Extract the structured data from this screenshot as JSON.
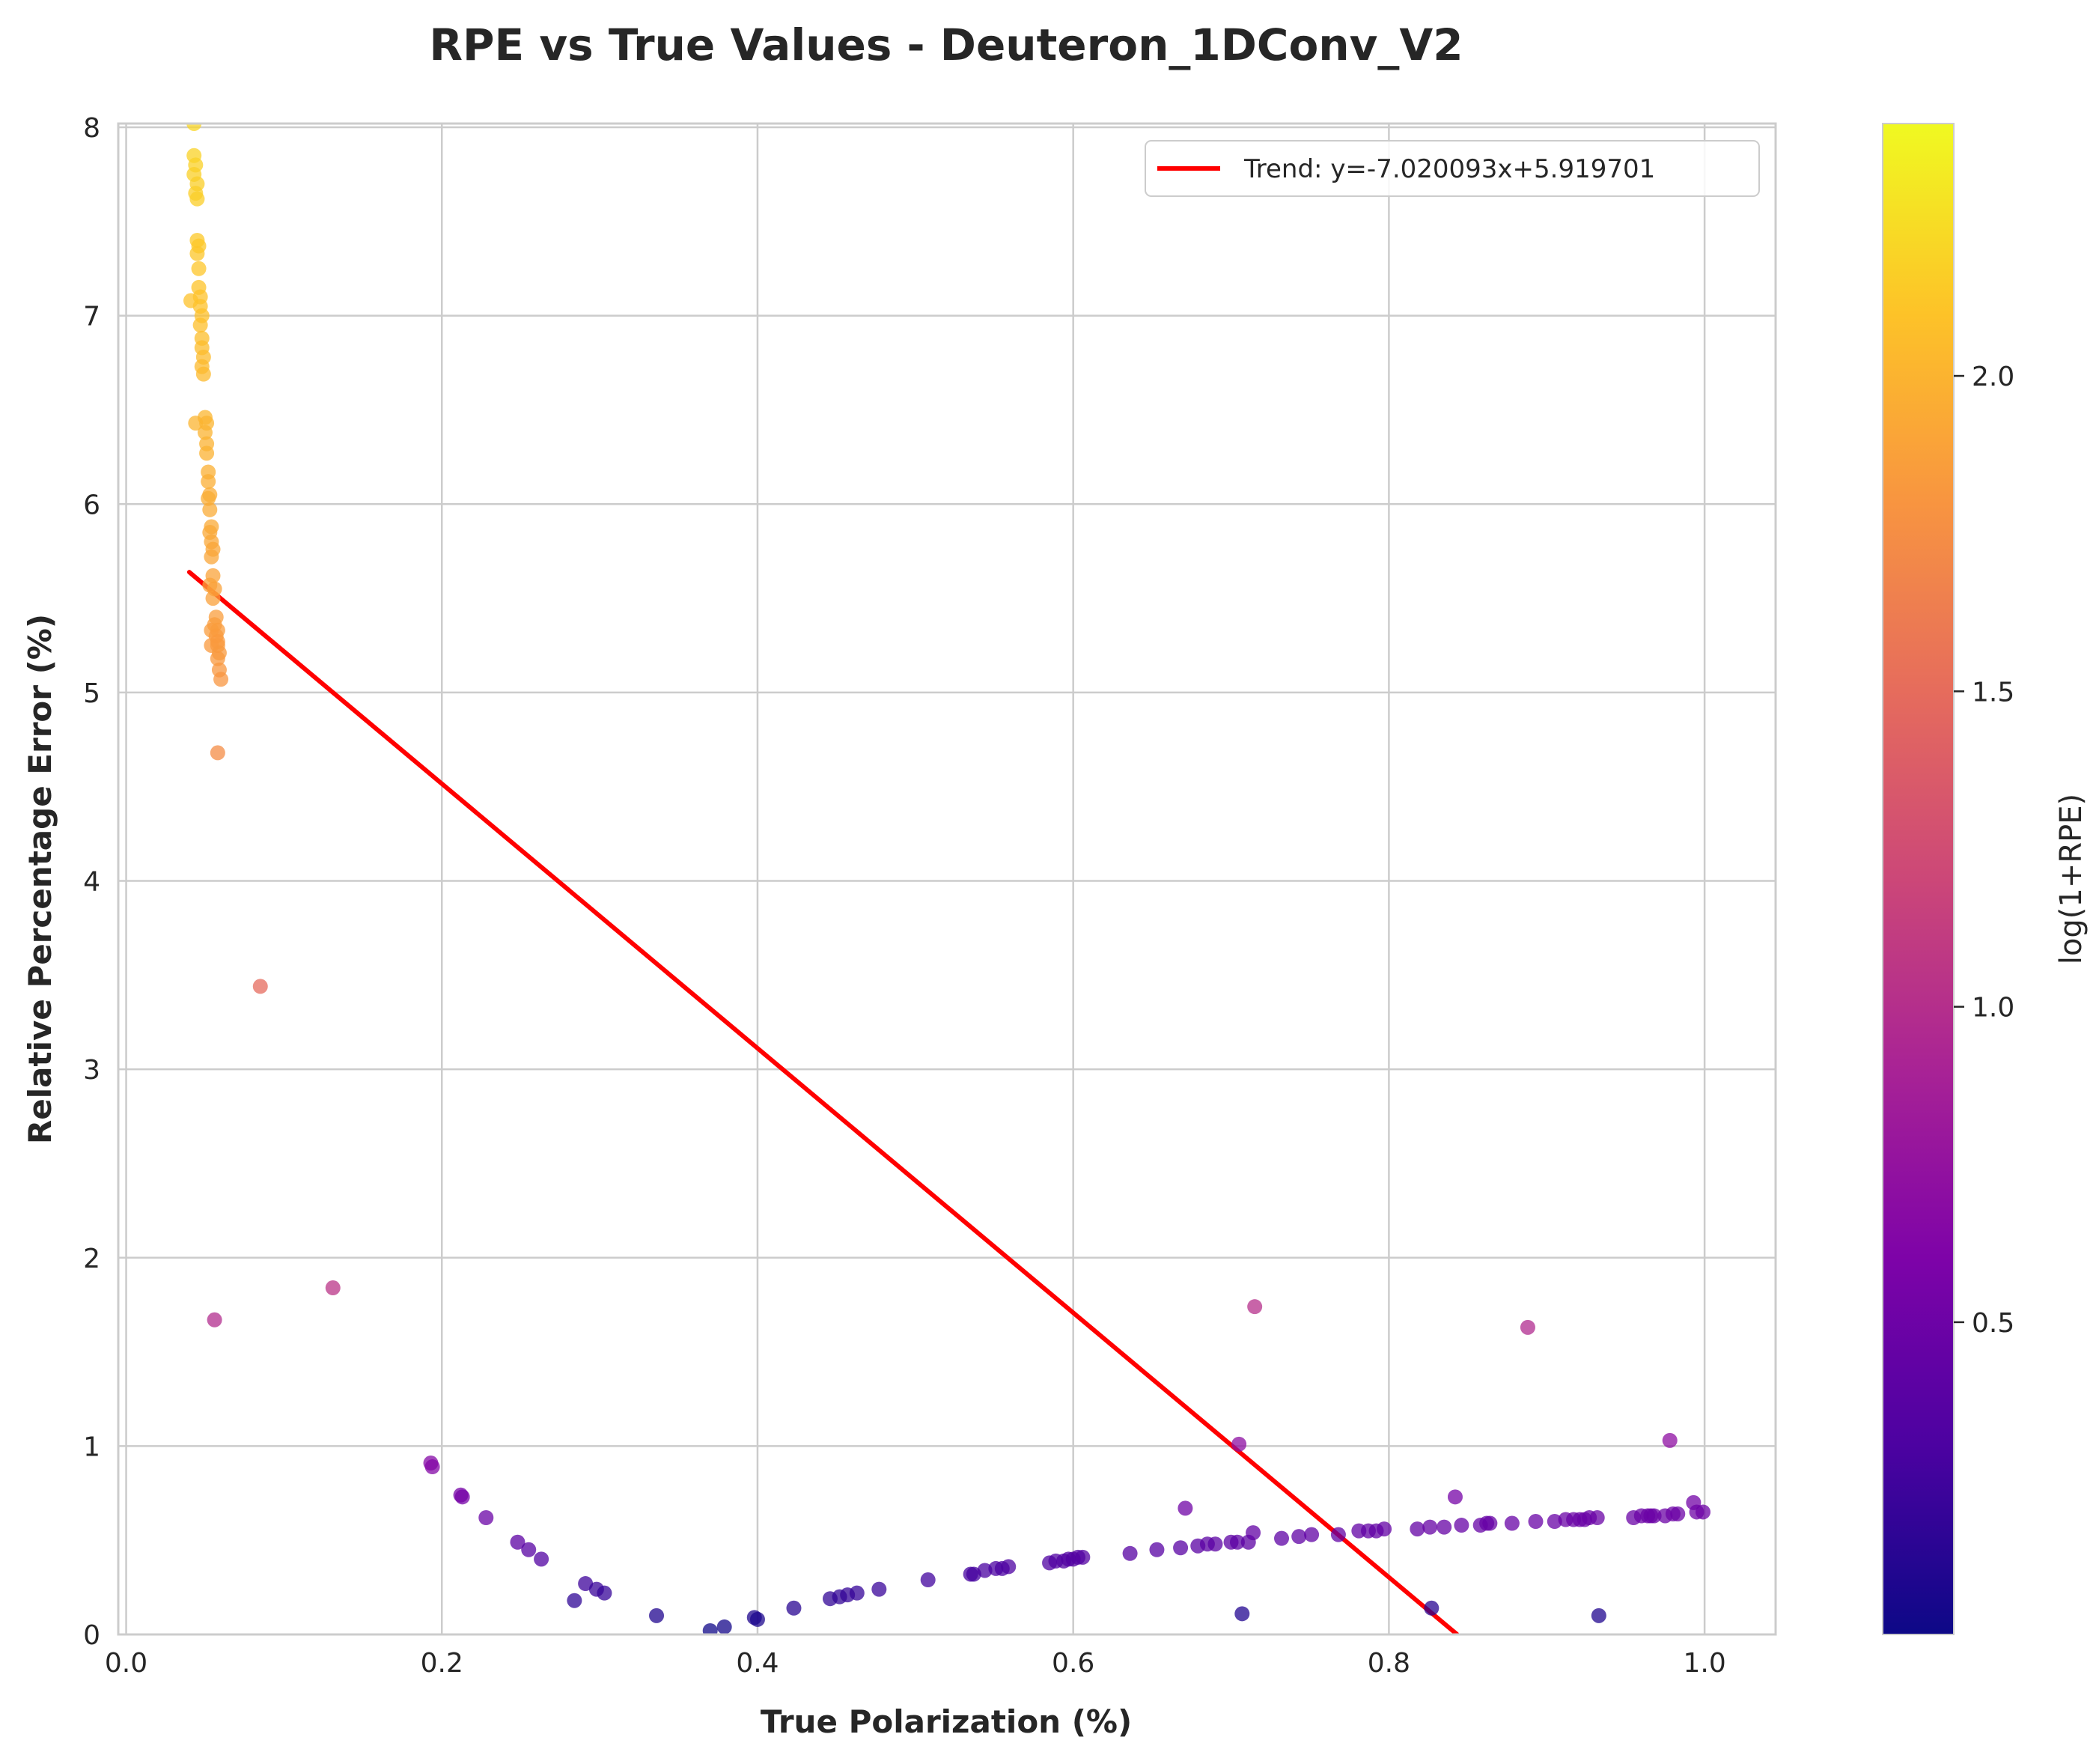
{
  "chart_data": {
    "type": "scatter",
    "title": "RPE vs True Values - Deuteron_1DConv_V2",
    "xlabel": "True Polarization (%)",
    "ylabel": "Relative Percentage Error (%)",
    "xlim": [
      -0.005,
      1.045
    ],
    "ylim": [
      0,
      8.02
    ],
    "xticks": [
      0.0,
      0.2,
      0.4,
      0.6,
      0.8,
      1.0
    ],
    "xtick_labels": [
      "0.0",
      "0.2",
      "0.4",
      "0.6",
      "0.8",
      "1.0"
    ],
    "yticks": [
      0,
      1,
      2,
      3,
      4,
      5,
      6,
      7,
      8
    ],
    "ytick_labels": [
      "0",
      "1",
      "2",
      "3",
      "4",
      "5",
      "6",
      "7",
      "8"
    ],
    "grid": true,
    "legend": {
      "position": "top-right",
      "entries": [
        "Trend: y=-7.020093x+5.919701"
      ]
    },
    "trend": {
      "label": "Trend: y=-7.020093x+5.919701",
      "slope": -7.020093,
      "intercept": 5.919701,
      "x_range": [
        0.04,
        0.843
      ],
      "color": "#ff0000"
    },
    "colorbar": {
      "label": "log(1+RPE)",
      "colormap": "plasma",
      "range": [
        0.005,
        2.4
      ],
      "ticks": [
        0.5,
        1.0,
        1.5,
        2.0
      ],
      "tick_labels": [
        "0.5",
        "1.0",
        "1.5",
        "2.0"
      ]
    },
    "points": [
      [
        0.043,
        8.02
      ],
      [
        0.043,
        7.85
      ],
      [
        0.044,
        7.8
      ],
      [
        0.043,
        7.75
      ],
      [
        0.045,
        7.7
      ],
      [
        0.044,
        7.65
      ],
      [
        0.045,
        7.62
      ],
      [
        0.045,
        7.4
      ],
      [
        0.046,
        7.37
      ],
      [
        0.045,
        7.33
      ],
      [
        0.046,
        7.25
      ],
      [
        0.046,
        7.15
      ],
      [
        0.047,
        7.1
      ],
      [
        0.041,
        7.08
      ],
      [
        0.047,
        7.05
      ],
      [
        0.048,
        7.0
      ],
      [
        0.047,
        6.95
      ],
      [
        0.048,
        6.88
      ],
      [
        0.048,
        6.83
      ],
      [
        0.049,
        6.78
      ],
      [
        0.048,
        6.73
      ],
      [
        0.049,
        6.69
      ],
      [
        0.05,
        6.46
      ],
      [
        0.051,
        6.43
      ],
      [
        0.044,
        6.43
      ],
      [
        0.05,
        6.38
      ],
      [
        0.051,
        6.32
      ],
      [
        0.051,
        6.27
      ],
      [
        0.052,
        6.17
      ],
      [
        0.052,
        6.12
      ],
      [
        0.053,
        6.05
      ],
      [
        0.052,
        6.03
      ],
      [
        0.053,
        5.97
      ],
      [
        0.054,
        5.88
      ],
      [
        0.053,
        5.85
      ],
      [
        0.054,
        5.8
      ],
      [
        0.055,
        5.76
      ],
      [
        0.054,
        5.72
      ],
      [
        0.055,
        5.62
      ],
      [
        0.053,
        5.57
      ],
      [
        0.056,
        5.55
      ],
      [
        0.055,
        5.5
      ],
      [
        0.057,
        5.4
      ],
      [
        0.056,
        5.36
      ],
      [
        0.058,
        5.33
      ],
      [
        0.054,
        5.33
      ],
      [
        0.057,
        5.3
      ],
      [
        0.058,
        5.27
      ],
      [
        0.058,
        5.25
      ],
      [
        0.054,
        5.25
      ],
      [
        0.059,
        5.21
      ],
      [
        0.058,
        5.18
      ],
      [
        0.059,
        5.12
      ],
      [
        0.06,
        5.07
      ],
      [
        0.058,
        4.68
      ],
      [
        0.085,
        3.44
      ],
      [
        0.131,
        1.84
      ],
      [
        0.056,
        1.67
      ],
      [
        0.193,
        0.91
      ],
      [
        0.194,
        0.89
      ],
      [
        0.212,
        0.74
      ],
      [
        0.213,
        0.73
      ],
      [
        0.228,
        0.62
      ],
      [
        0.248,
        0.49
      ],
      [
        0.255,
        0.45
      ],
      [
        0.263,
        0.4
      ],
      [
        0.284,
        0.18
      ],
      [
        0.291,
        0.27
      ],
      [
        0.298,
        0.24
      ],
      [
        0.303,
        0.22
      ],
      [
        0.336,
        0.1
      ],
      [
        0.37,
        0.02
      ],
      [
        0.379,
        0.04
      ],
      [
        0.398,
        0.09
      ],
      [
        0.4,
        0.08
      ],
      [
        0.423,
        0.14
      ],
      [
        0.446,
        0.19
      ],
      [
        0.452,
        0.2
      ],
      [
        0.457,
        0.21
      ],
      [
        0.463,
        0.22
      ],
      [
        0.477,
        0.24
      ],
      [
        0.508,
        0.29
      ],
      [
        0.535,
        0.32
      ],
      [
        0.537,
        0.32
      ],
      [
        0.544,
        0.34
      ],
      [
        0.551,
        0.35
      ],
      [
        0.555,
        0.35
      ],
      [
        0.559,
        0.36
      ],
      [
        0.585,
        0.38
      ],
      [
        0.589,
        0.39
      ],
      [
        0.594,
        0.39
      ],
      [
        0.597,
        0.4
      ],
      [
        0.6,
        0.4
      ],
      [
        0.603,
        0.41
      ],
      [
        0.606,
        0.41
      ],
      [
        0.636,
        0.43
      ],
      [
        0.653,
        0.45
      ],
      [
        0.668,
        0.46
      ],
      [
        0.671,
        0.67
      ],
      [
        0.679,
        0.47
      ],
      [
        0.685,
        0.48
      ],
      [
        0.69,
        0.48
      ],
      [
        0.7,
        0.49
      ],
      [
        0.704,
        0.49
      ],
      [
        0.705,
        1.01
      ],
      [
        0.707,
        0.11
      ],
      [
        0.711,
        0.49
      ],
      [
        0.714,
        0.54
      ],
      [
        0.715,
        1.74
      ],
      [
        0.732,
        0.51
      ],
      [
        0.743,
        0.52
      ],
      [
        0.751,
        0.53
      ],
      [
        0.768,
        0.53
      ],
      [
        0.781,
        0.55
      ],
      [
        0.787,
        0.55
      ],
      [
        0.792,
        0.55
      ],
      [
        0.797,
        0.56
      ],
      [
        0.818,
        0.56
      ],
      [
        0.826,
        0.57
      ],
      [
        0.827,
        0.14
      ],
      [
        0.835,
        0.57
      ],
      [
        0.842,
        0.73
      ],
      [
        0.846,
        0.58
      ],
      [
        0.858,
        0.58
      ],
      [
        0.862,
        0.59
      ],
      [
        0.864,
        0.59
      ],
      [
        0.878,
        0.59
      ],
      [
        0.888,
        1.63
      ],
      [
        0.893,
        0.6
      ],
      [
        0.905,
        0.6
      ],
      [
        0.912,
        0.61
      ],
      [
        0.917,
        0.61
      ],
      [
        0.921,
        0.61
      ],
      [
        0.924,
        0.61
      ],
      [
        0.927,
        0.62
      ],
      [
        0.932,
        0.62
      ],
      [
        0.933,
        0.1
      ],
      [
        0.955,
        0.62
      ],
      [
        0.96,
        0.63
      ],
      [
        0.964,
        0.63
      ],
      [
        0.966,
        0.63
      ],
      [
        0.968,
        0.63
      ],
      [
        0.975,
        0.63
      ],
      [
        0.978,
        1.03
      ],
      [
        0.98,
        0.64
      ],
      [
        0.983,
        0.64
      ],
      [
        0.993,
        0.7
      ],
      [
        0.995,
        0.65
      ],
      [
        0.999,
        0.65
      ]
    ]
  }
}
